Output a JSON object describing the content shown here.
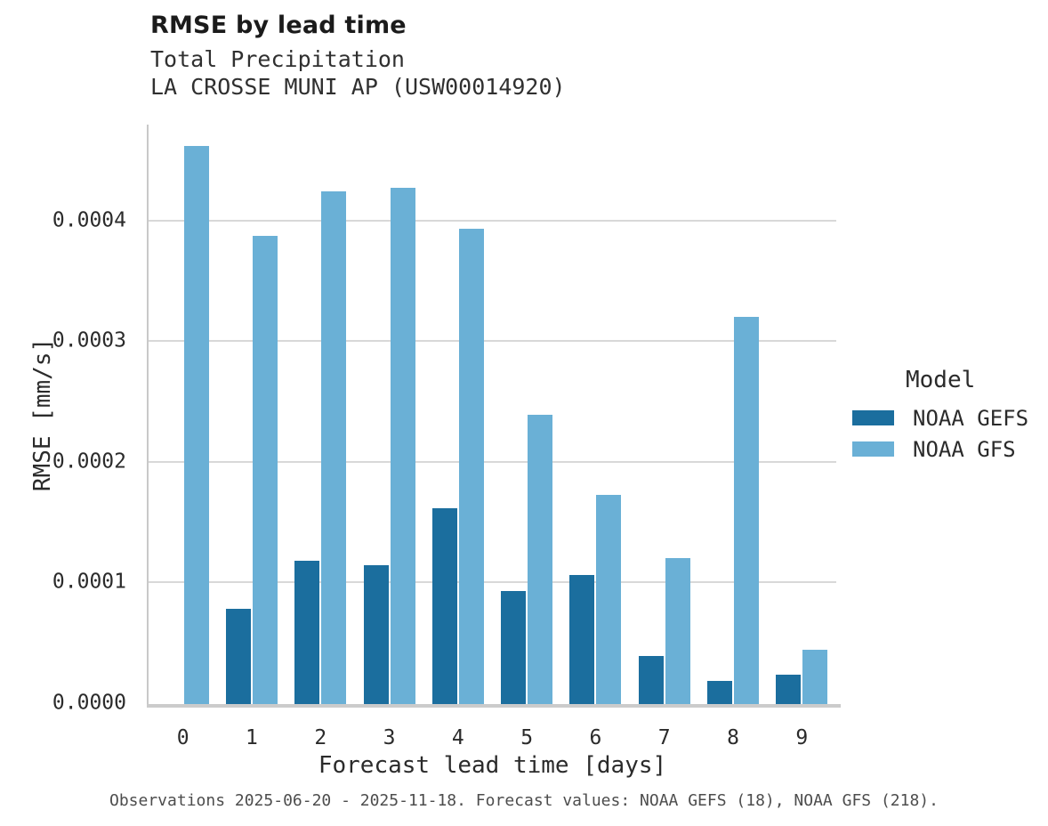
{
  "chart_data": {
    "type": "bar",
    "title": "RMSE by lead time",
    "subtitle": [
      "Total Precipitation",
      "LA CROSSE MUNI AP (USW00014920)"
    ],
    "xlabel": "Forecast lead time [days]",
    "ylabel": "RMSE [mm/s]",
    "categories": [
      "0",
      "1",
      "2",
      "3",
      "4",
      "5",
      "6",
      "7",
      "8",
      "9"
    ],
    "series": [
      {
        "name": "NOAA GEFS",
        "color": "#1b6e9e",
        "values": [
          null,
          7.9e-05,
          0.000119,
          0.000115,
          0.000162,
          9.4e-05,
          0.000107,
          4e-05,
          1.9e-05,
          2.4e-05
        ]
      },
      {
        "name": "NOAA GFS",
        "color": "#6ab0d6",
        "values": [
          0.000462,
          0.000388,
          0.000425,
          0.000428,
          0.000394,
          0.00024,
          0.000173,
          0.000121,
          0.000321,
          4.5e-05
        ]
      }
    ],
    "ylim": [
      0,
      0.00048
    ],
    "yticks": [
      {
        "value": 0.0,
        "label": "0.0000"
      },
      {
        "value": 0.0001,
        "label": "0.0001"
      },
      {
        "value": 0.0002,
        "label": "0.0002"
      },
      {
        "value": 0.0003,
        "label": "0.0003"
      },
      {
        "value": 0.0004,
        "label": "0.0004"
      }
    ],
    "grid": "horizontal",
    "legend": {
      "title": "Model",
      "position": "right"
    },
    "caption": "Observations 2025-06-20 - 2025-11-18. Forecast values: NOAA GEFS (18), NOAA GFS (218)."
  },
  "colors": {
    "gridline": "#d8d8d8",
    "axis_line": "#c9c9c9",
    "title_text": "#1b1b1b",
    "tick_text": "#2b2b2b",
    "caption_text": "#4d4d4d",
    "background": "#ffffff"
  }
}
